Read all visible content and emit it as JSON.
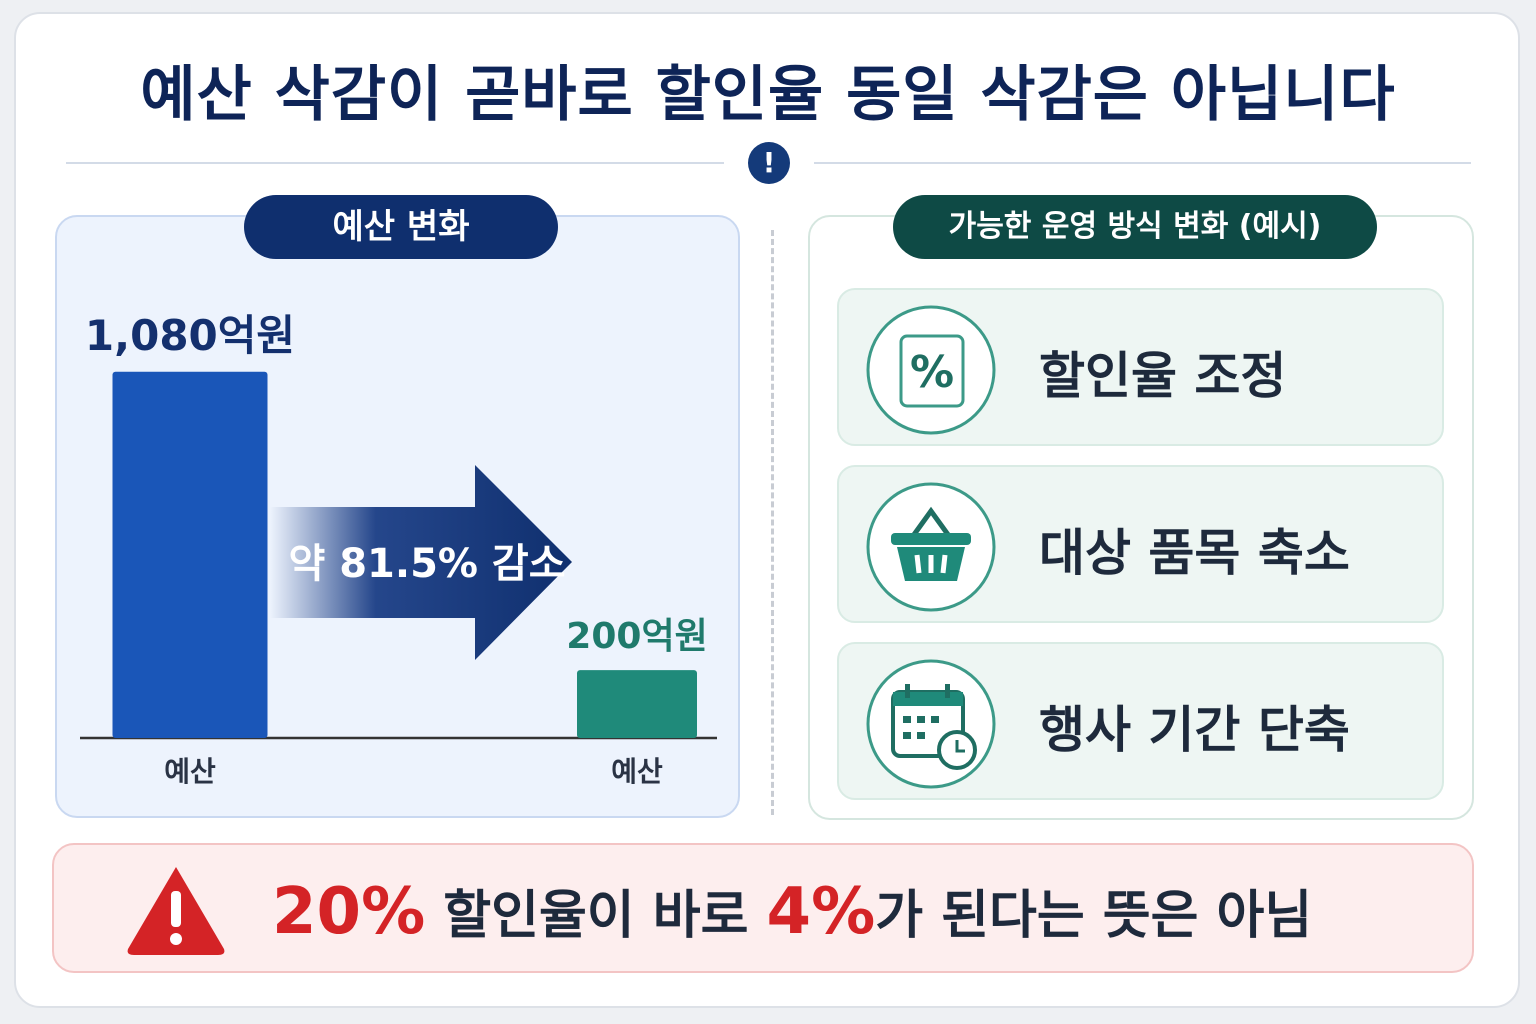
{
  "header": {
    "title": "예산 삭감이 곧바로 할인율 동일 삭감은 아닙니다"
  },
  "chart_data": {
    "type": "bar",
    "title": "예산 변화",
    "categories": [
      "예산",
      "예산"
    ],
    "values": [
      1080,
      200
    ],
    "value_labels": [
      "1,080억원",
      "200억원"
    ],
    "colors": [
      "#1a56b8",
      "#1f8a7a"
    ],
    "ylim": [
      0,
      1100
    ],
    "annotation": "약 81.5% 감소"
  },
  "options": {
    "title": "가능한 운영 방식 변화 (예시)",
    "items": [
      "할인율 조정",
      "대상 품목 축소",
      "행사 기간 단축"
    ]
  },
  "warning": {
    "parts": [
      "20%",
      " 할인율이 바로 ",
      "4%",
      "가 된다는 뜻은 아님"
    ]
  }
}
